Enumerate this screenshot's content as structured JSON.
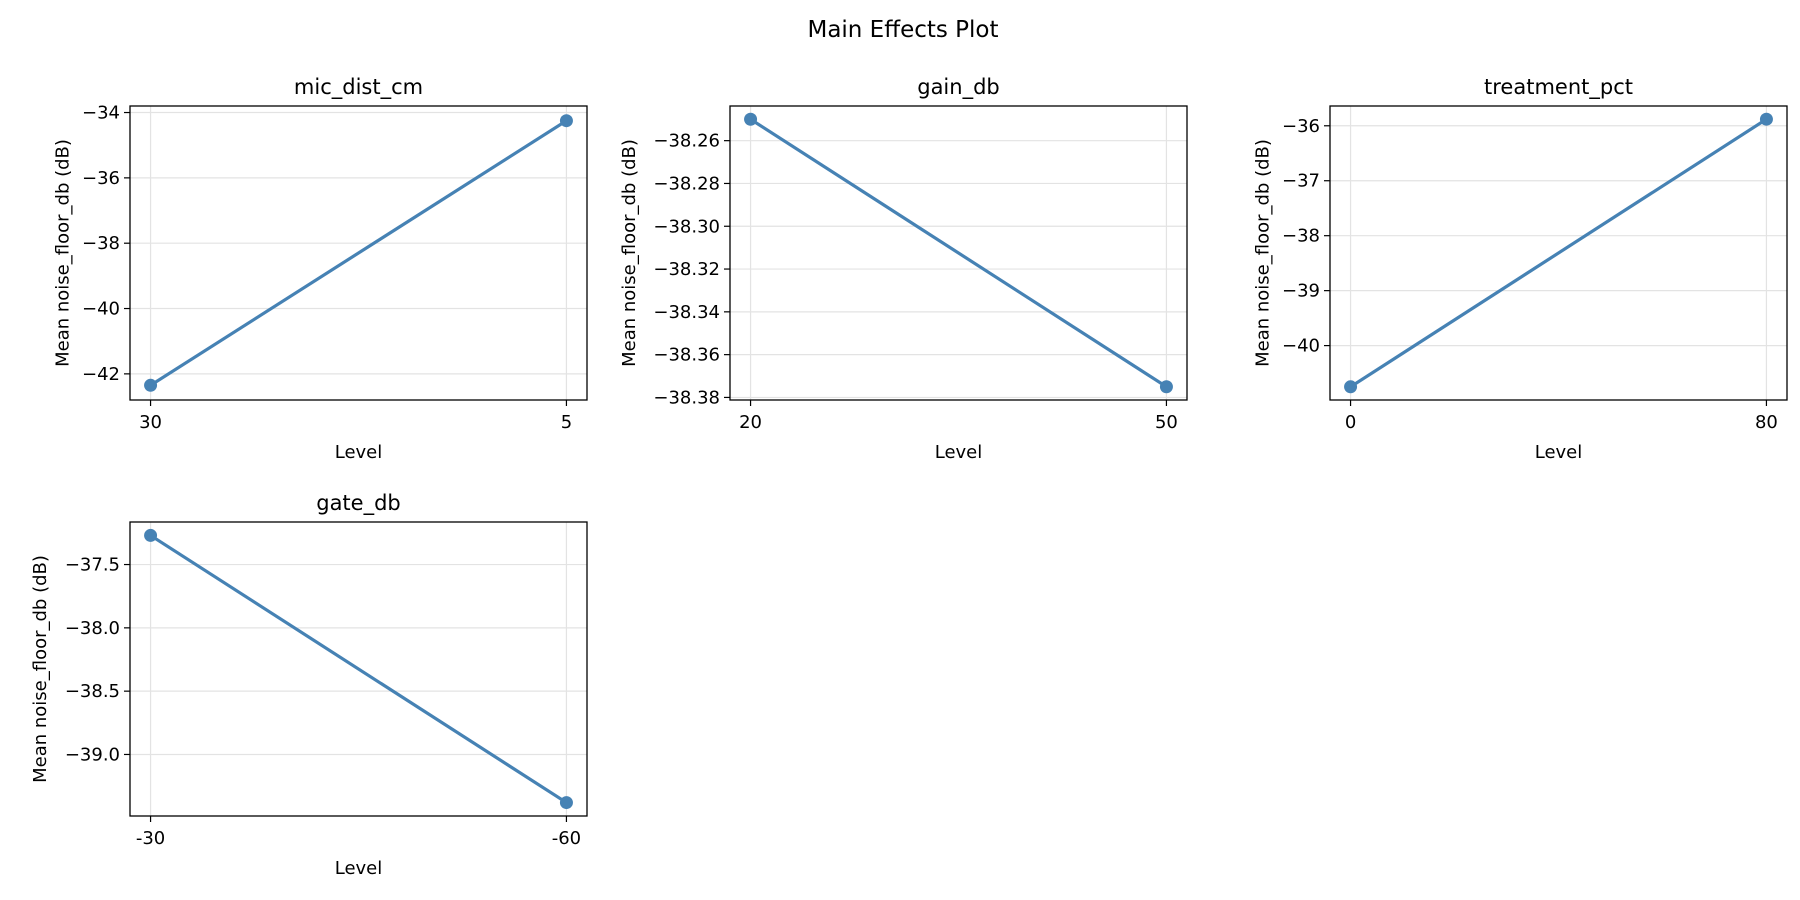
{
  "figure": {
    "title": "Main Effects Plot",
    "line_color": "#4682b4"
  },
  "chart_data": [
    {
      "type": "line",
      "title": "mic_dist_cm",
      "xlabel": "Level",
      "ylabel": "Mean noise_floor_db (dB)",
      "categories": [
        "30",
        "5"
      ],
      "values": [
        -42.35,
        -34.25
      ],
      "ylim": [
        -42.8,
        -33.8
      ],
      "yticks": [
        -42,
        -40,
        -38,
        -36,
        -34
      ],
      "ytick_labels": [
        "−42",
        "−40",
        "−38",
        "−36",
        "−34"
      ],
      "grid": true
    },
    {
      "type": "line",
      "title": "gain_db",
      "xlabel": "Level",
      "ylabel": "Mean noise_floor_db (dB)",
      "categories": [
        "20",
        "50"
      ],
      "values": [
        -38.25,
        -38.375
      ],
      "ylim": [
        -38.3812,
        -38.2438
      ],
      "yticks": [
        -38.38,
        -38.36,
        -38.34,
        -38.32,
        -38.3,
        -38.28,
        -38.26
      ],
      "ytick_labels": [
        "−38.38",
        "−38.36",
        "−38.34",
        "−38.32",
        "−38.30",
        "−38.28",
        "−38.26"
      ],
      "grid": true
    },
    {
      "type": "line",
      "title": "treatment_pct",
      "xlabel": "Level",
      "ylabel": "Mean noise_floor_db (dB)",
      "categories": [
        "0",
        "80"
      ],
      "values": [
        -40.75,
        -35.88
      ],
      "ylim": [
        -40.99,
        -35.64
      ],
      "yticks": [
        -40,
        -39,
        -38,
        -37,
        -36
      ],
      "ytick_labels": [
        "−40",
        "−39",
        "−38",
        "−37",
        "−36"
      ],
      "grid": true
    },
    {
      "type": "line",
      "title": "gate_db",
      "xlabel": "Level",
      "ylabel": "Mean noise_floor_db (dB)",
      "categories": [
        "-30",
        "-60"
      ],
      "values": [
        -37.27,
        -39.38
      ],
      "ylim": [
        -39.486,
        -37.164
      ],
      "yticks": [
        -39.0,
        -38.5,
        -38.0,
        -37.5
      ],
      "ytick_labels": [
        "−39.0",
        "−38.5",
        "−38.0",
        "−37.5"
      ],
      "grid": true
    }
  ]
}
